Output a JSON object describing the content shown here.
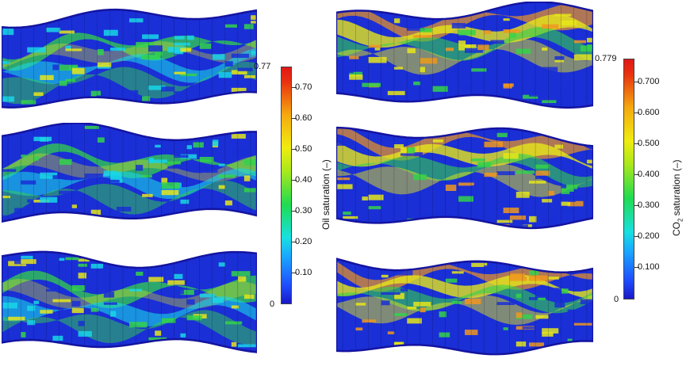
{
  "left_colorbar": {
    "max_label": "0.77",
    "min_label": "0",
    "ticks": [
      "0.70",
      "0.60",
      "0.50",
      "0.40",
      "0.30",
      "0.20",
      "0.10"
    ],
    "title": "Oil saturation (–)"
  },
  "right_colorbar": {
    "max_label": "0.779",
    "min_label": "0",
    "ticks": [
      "0.700",
      "0.600",
      "0.500",
      "0.400",
      "0.300",
      "0.200",
      "0.100"
    ],
    "title_prefix": "CO",
    "title_sub": "2",
    "title_suffix": " saturation (–)"
  },
  "colors": {
    "deep_blue": "#1a2fd6",
    "outline": "#1414a0",
    "cyan": "#19d6e6",
    "green": "#34d24a",
    "yellow": "#e6e61a",
    "orange": "#f0961e",
    "red": "#e02a18"
  },
  "panels": [
    {
      "name": "oil-panel-1",
      "variant": "oil",
      "seed": 1
    },
    {
      "name": "oil-panel-2",
      "variant": "oil",
      "seed": 2
    },
    {
      "name": "oil-panel-3",
      "variant": "oil",
      "seed": 3
    },
    {
      "name": "co2-panel-1",
      "variant": "co2",
      "seed": 4
    },
    {
      "name": "co2-panel-2",
      "variant": "co2",
      "seed": 5
    },
    {
      "name": "co2-panel-3",
      "variant": "co2",
      "seed": 6
    }
  ]
}
